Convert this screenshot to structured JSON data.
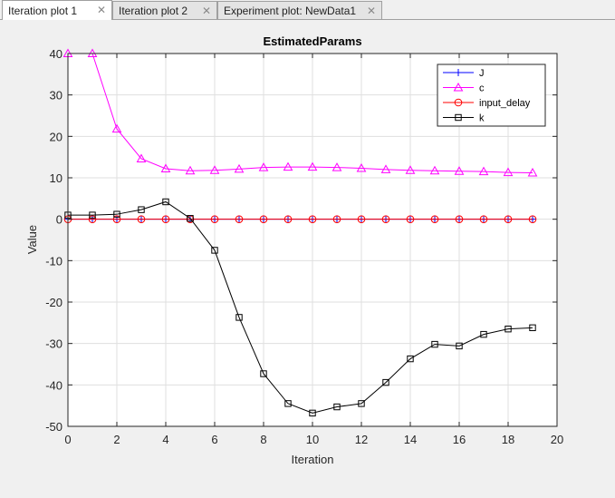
{
  "tabs": [
    {
      "label": "Iteration plot 1",
      "active": true
    },
    {
      "label": "Iteration plot 2",
      "active": false
    },
    {
      "label": "Experiment plot: NewData1",
      "active": false
    }
  ],
  "close_glyph": "✕",
  "chart_data": {
    "type": "line",
    "title": "EstimatedParams",
    "xlabel": "Iteration",
    "ylabel": "Value",
    "xlim": [
      0,
      20
    ],
    "ylim": [
      -50,
      40
    ],
    "xticks": [
      0,
      2,
      4,
      6,
      8,
      10,
      12,
      14,
      16,
      18,
      20
    ],
    "yticks": [
      -50,
      -40,
      -30,
      -20,
      -10,
      0,
      10,
      20,
      30,
      40
    ],
    "grid": true,
    "legend_position": "top-right",
    "x": [
      0,
      1,
      2,
      3,
      4,
      5,
      6,
      7,
      8,
      9,
      10,
      11,
      12,
      13,
      14,
      15,
      16,
      17,
      18,
      19
    ],
    "series": [
      {
        "name": "J",
        "color": "#0000ff",
        "marker": "plus",
        "values": [
          0,
          0,
          0,
          0,
          0,
          0,
          0,
          0,
          0,
          0,
          0,
          0,
          0,
          0,
          0,
          0,
          0,
          0,
          0,
          0
        ]
      },
      {
        "name": "c",
        "color": "#ff00ff",
        "marker": "triangle",
        "values": [
          40,
          40,
          21.8,
          14.6,
          12.2,
          11.7,
          11.8,
          12.1,
          12.5,
          12.6,
          12.6,
          12.5,
          12.3,
          12.0,
          11.8,
          11.7,
          11.6,
          11.5,
          11.3,
          11.2
        ]
      },
      {
        "name": "input_delay",
        "color": "#ff0000",
        "marker": "circle",
        "values": [
          0,
          0,
          0,
          0,
          0,
          0,
          0,
          0,
          0,
          0,
          0,
          0,
          0,
          0,
          0,
          0,
          0,
          0,
          0,
          0
        ]
      },
      {
        "name": "k",
        "color": "#000000",
        "marker": "square",
        "values": [
          1.0,
          1.0,
          1.2,
          2.3,
          4.2,
          0.2,
          -7.5,
          -23.7,
          -37.3,
          -44.5,
          -46.8,
          -45.3,
          -44.5,
          -39.4,
          -33.7,
          -30.2,
          -30.6,
          -27.8,
          -26.5,
          -26.2
        ]
      }
    ]
  }
}
